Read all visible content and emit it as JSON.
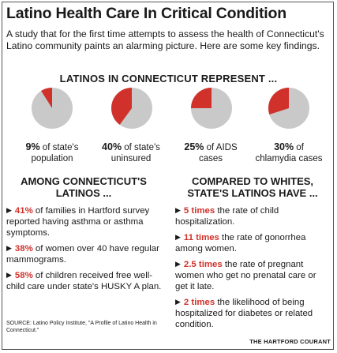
{
  "title": "Latino Health Care In Critical Condition",
  "intro": "A study that for the first time attempts to assess the health of Connecticut's Latino community paints an alarming picture. Here are some key findings.",
  "pies_heading": "LATINOS IN CONNECTICUT REPRESENT ...",
  "pies": [
    {
      "percent": 9,
      "pct_label": "9%",
      "text1": " of state's",
      "text2": "population"
    },
    {
      "percent": 40,
      "pct_label": "40%",
      "text1": " of state's",
      "text2": "uninsured"
    },
    {
      "percent": 25,
      "pct_label": "25%",
      "text1": " of AIDS",
      "text2": "cases"
    },
    {
      "percent": 30,
      "pct_label": "30%",
      "text1": " of",
      "text2": "chlamydia cases"
    }
  ],
  "colors": {
    "highlight": "#d0322b",
    "pie_base": "#c9c9c9"
  },
  "left": {
    "heading_line1": "AMONG CONNECTICUT'S",
    "heading_line2": "LATINOS ...",
    "items": [
      {
        "value": "41%",
        "text": " of families in Hartford survey reported having asthma or asthma symptoms."
      },
      {
        "value": "38%",
        "text": " of women over 40 have regular mammograms."
      },
      {
        "value": "58%",
        "text": " of children received free well-child care under state's HUSKY A plan."
      }
    ]
  },
  "right": {
    "heading_line1": "COMPARED TO WHITES,",
    "heading_line2": "STATE'S LATINOS HAVE ...",
    "items": [
      {
        "value": "5 times",
        "text": " the rate of child hospitalization."
      },
      {
        "value": "11 times",
        "text": " the rate of gonorrhea among women."
      },
      {
        "value": "2.5 times",
        "text": " the rate of pregnant women who get no prenatal care or get it late."
      },
      {
        "value": "2 times",
        "text": " the likelihood of being hospitalized for diabetes or related condition."
      }
    ]
  },
  "source": "SOURCE: Latino Policy Institute, \"A Profile of Latino Health in Connecticut.\"",
  "credit": "THE HARTFORD COURANT",
  "icons": {
    "bullet": "right-triangle-bullet-icon"
  }
}
